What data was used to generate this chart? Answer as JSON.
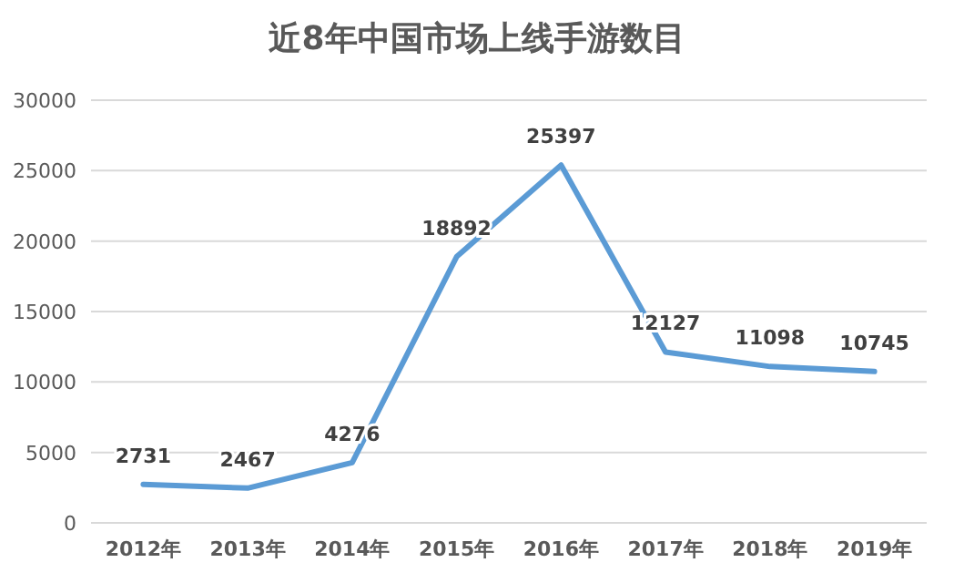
{
  "chart_data": {
    "type": "line",
    "title": "近8年中国市场上线手游数目",
    "categories": [
      "2012年",
      "2013年",
      "2014年",
      "2015年",
      "2016年",
      "2017年",
      "2018年",
      "2019年"
    ],
    "series": [
      {
        "color": "#5b9bd5",
        "values": [
          2731,
          2467,
          4276,
          18892,
          25397,
          12127,
          11098,
          10745
        ]
      }
    ],
    "ylim": [
      0,
      30000
    ],
    "yticks": [
      0,
      5000,
      10000,
      15000,
      20000,
      25000,
      30000
    ],
    "grid": "y",
    "marker": "none",
    "line_style": "solid",
    "data_labels": true
  }
}
